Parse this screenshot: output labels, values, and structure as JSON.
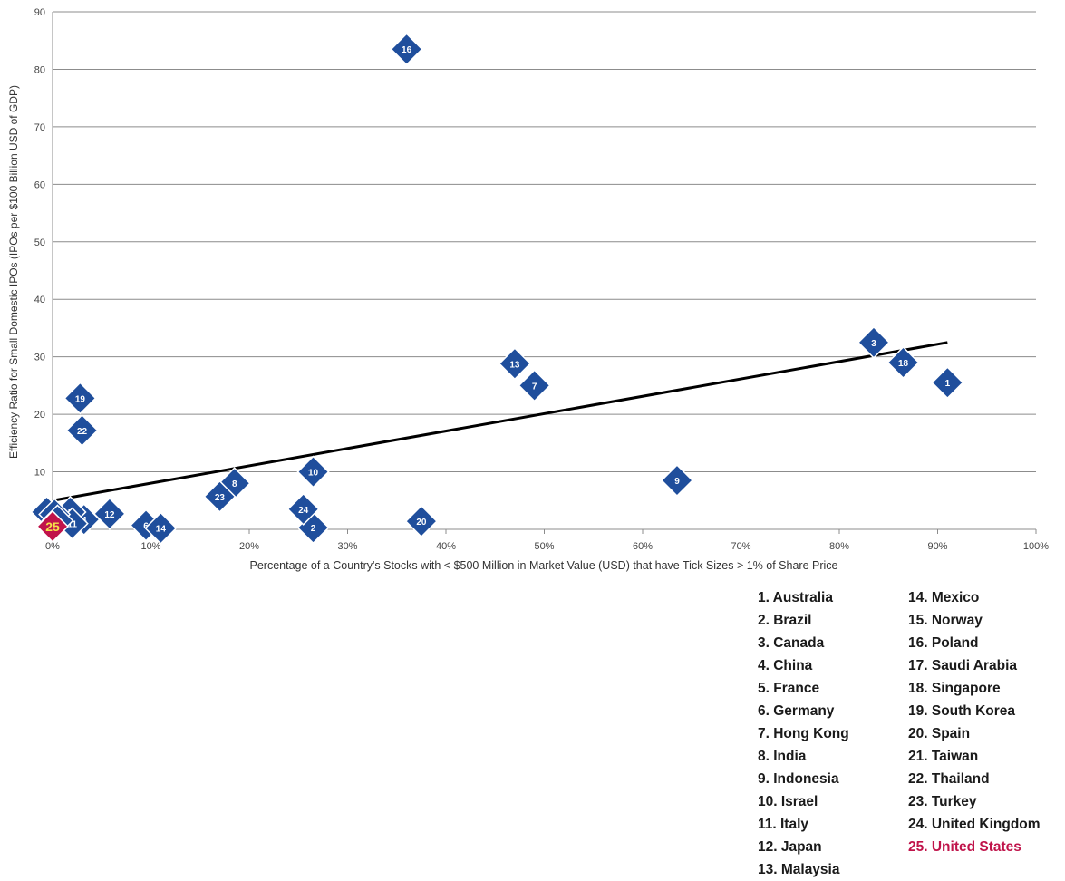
{
  "chart_data": {
    "type": "scatter",
    "xlabel": "Percentage of a Country's Stocks with < $500 Million in Market Value (USD) that have Tick Sizes > 1% of Share Price",
    "ylabel": "Efficiency Ratio for Small Domestic IPOs (IPOs per $100 Billion USD of GDP)",
    "xlim": [
      0,
      100
    ],
    "ylim": [
      0,
      90
    ],
    "x_ticks": [
      "0%",
      "10%",
      "20%",
      "30%",
      "40%",
      "50%",
      "60%",
      "70%",
      "80%",
      "90%",
      "100%"
    ],
    "y_ticks": [
      "10",
      "20",
      "30",
      "40",
      "50",
      "60",
      "70",
      "80",
      "90"
    ],
    "grid": true,
    "marker_color": "#1f4e9c",
    "highlight_color": "#c0134a",
    "trendline": {
      "x": [
        0,
        91
      ],
      "y": [
        5,
        32.5
      ]
    },
    "legend": [
      "1. Australia",
      "2. Brazil",
      "3. Canada",
      "4. China",
      "5. France",
      "6. Germany",
      "7. Hong Kong",
      "8. India",
      "9. Indonesia",
      "10. Israel",
      "11. Italy",
      "12. Japan",
      "13. Malaysia",
      "14. Mexico",
      "15. Norway",
      "16. Poland",
      "17. Saudi Arabia",
      "18. Singapore",
      "19. South Korea",
      "20. Spain",
      "21. Taiwan",
      "22. Thailand",
      "23. Turkey",
      "24. United Kingdom",
      "25. United States"
    ],
    "points": [
      {
        "label": "1",
        "x": 91,
        "y": 25.5
      },
      {
        "label": "2",
        "x": 26.5,
        "y": 0.3
      },
      {
        "label": "3",
        "x": 83.5,
        "y": 32.5
      },
      {
        "label": "4",
        "x": 3.2,
        "y": 1.7
      },
      {
        "label": "5",
        "x": 1.8,
        "y": 3
      },
      {
        "label": "6",
        "x": 9.5,
        "y": 0.7
      },
      {
        "label": "7",
        "x": 49,
        "y": 25
      },
      {
        "label": "8",
        "x": 18.5,
        "y": 8
      },
      {
        "label": "9",
        "x": 63.5,
        "y": 8.5
      },
      {
        "label": "10",
        "x": 26.5,
        "y": 10
      },
      {
        "label": "11",
        "x": 2,
        "y": 1
      },
      {
        "label": "12",
        "x": 5.8,
        "y": 2.7
      },
      {
        "label": "13",
        "x": 47,
        "y": 28.8
      },
      {
        "label": "14",
        "x": 11,
        "y": 0.2
      },
      {
        "label": "15",
        "x": -0.6,
        "y": 3
      },
      {
        "label": "16",
        "x": 36,
        "y": 83.5
      },
      {
        "label": "17",
        "x": 0.2,
        "y": 2.6
      },
      {
        "label": "18",
        "x": 86.5,
        "y": 29
      },
      {
        "label": "19",
        "x": 2.8,
        "y": 22.8
      },
      {
        "label": "20",
        "x": 37.5,
        "y": 1.4
      },
      {
        "label": "21",
        "x": 0.5,
        "y": 1.5
      },
      {
        "label": "22",
        "x": 3,
        "y": 17.2
      },
      {
        "label": "23",
        "x": 17,
        "y": 5.7
      },
      {
        "label": "24",
        "x": 25.5,
        "y": 3.5
      },
      {
        "label": "25",
        "x": 0,
        "y": 0.5,
        "highlight": true
      }
    ]
  }
}
